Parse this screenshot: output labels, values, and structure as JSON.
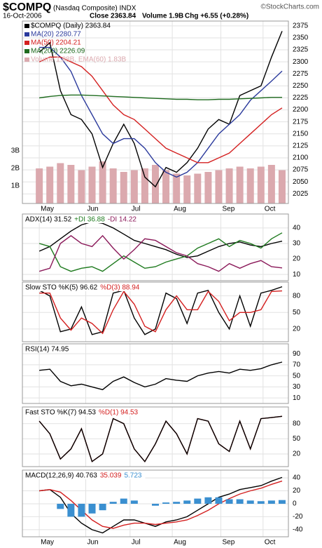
{
  "header": {
    "title": "$COMPQ",
    "subtitle": "(Nasdaq Composite) INDX",
    "credit": "©StockCharts.com",
    "date": "16-Oct-2006",
    "close": "Close 2363.84",
    "volume": "Volume 1.9B",
    "change": "Chg +6.55 (+0.28%)"
  },
  "chart_data": {
    "type": "stock-panels",
    "x": [
      0,
      5,
      10,
      15,
      20,
      25,
      30,
      35,
      40,
      45,
      50,
      55,
      60,
      65,
      70,
      75,
      80,
      85,
      90,
      95,
      100,
      105,
      110,
      115
    ],
    "xlim": [
      -8,
      118
    ],
    "xticks": [
      {
        "value": 0,
        "label": "May"
      },
      {
        "value": 22,
        "label": "Jun"
      },
      {
        "value": 43,
        "label": "Jul"
      },
      {
        "value": 63,
        "label": "Aug"
      },
      {
        "value": 86,
        "label": "Sep"
      },
      {
        "value": 106,
        "label": "Oct"
      }
    ],
    "panels": [
      {
        "type": "line",
        "ylim": [
          2005,
          2385
        ],
        "yticks": [
          2025,
          2050,
          2075,
          2100,
          2125,
          2150,
          2175,
          2200,
          2225,
          2250,
          2275,
          2300,
          2325,
          2350,
          2375
        ],
        "y2lim": [
          0,
          10.4
        ],
        "y2ticks": [
          {
            "value": 1,
            "label": "1B"
          },
          {
            "value": 2,
            "label": "2B"
          },
          {
            "value": 3,
            "label": "3B"
          }
        ],
        "series": [
          {
            "name": "Volume 1.88B, EMA(60) 1.83B",
            "type": "bar",
            "axis": "y2",
            "color": "#dba9ae",
            "values": [
              2.0,
              2.1,
              2.3,
              2.2,
              1.9,
              2.1,
              2.4,
              2.0,
              1.8,
              1.9,
              2.0,
              2.2,
              1.9,
              1.7,
              1.6,
              1.7,
              1.8,
              1.9,
              2.0,
              2.1,
              2.0,
              2.1,
              2.2,
              1.9
            ]
          },
          {
            "name": "$COMPQ (Daily) 2363.84",
            "color": "#000000",
            "values": [
              2320,
              2340,
              2240,
              2190,
              2180,
              2150,
              2080,
              2130,
              2170,
              2130,
              2060,
              2040,
              2080,
              2070,
              2090,
              2120,
              2160,
              2180,
              2170,
              2230,
              2240,
              2250,
              2310,
              2364
            ]
          },
          {
            "name": "MA(20) 2280.77",
            "color": "#2b3a9c",
            "values": [
              2330,
              2330,
              2310,
              2280,
              2230,
              2190,
              2150,
              2130,
              2140,
              2140,
              2120,
              2090,
              2070,
              2060,
              2070,
              2090,
              2120,
              2150,
              2170,
              2190,
              2220,
              2240,
              2260,
              2281
            ]
          },
          {
            "name": "MA(50) 2204.21",
            "color": "#d42020",
            "values": [
              2300,
              2310,
              2310,
              2300,
              2290,
              2270,
              2240,
              2210,
              2190,
              2180,
              2160,
              2140,
              2120,
              2110,
              2100,
              2090,
              2090,
              2100,
              2110,
              2130,
              2150,
              2170,
              2190,
              2204
            ]
          },
          {
            "name": "MA(200) 2226.09",
            "color": "#1e6b1e",
            "values": [
              2225,
              2228,
              2230,
              2231,
              2231,
              2230,
              2229,
              2228,
              2227,
              2226,
              2225,
              2224,
              2223,
              2222,
              2222,
              2221,
              2221,
              2222,
              2222,
              2223,
              2224,
              2225,
              2226,
              2226
            ]
          }
        ]
      },
      {
        "type": "line",
        "ylim": [
          6,
          49
        ],
        "yticks": [
          10,
          20,
          30,
          40
        ],
        "series": [
          {
            "name": "ADX(14) 31.52",
            "color": "#000000",
            "values": [
              25,
              28,
              33,
              38,
              42,
              44,
              43,
              40,
              36,
              32,
              30,
              28,
              26,
              23,
              21,
              22,
              25,
              28,
              30,
              31,
              29,
              28,
              30,
              31.5
            ]
          },
          {
            "name": "+DI 36.88",
            "color": "#1e7a1e",
            "values": [
              30,
              28,
              15,
              12,
              14,
              15,
              12,
              17,
              22,
              18,
              14,
              15,
              18,
              20,
              22,
              27,
              30,
              33,
              28,
              32,
              30,
              27,
              33,
              36.88
            ]
          },
          {
            "name": "-DI 14.22",
            "color": "#8b1a5a",
            "values": [
              12,
              14,
              30,
              35,
              30,
              28,
              35,
              27,
              20,
              26,
              33,
              32,
              28,
              24,
              22,
              17,
              15,
              12,
              17,
              14,
              17,
              19,
              15,
              14.22
            ]
          }
        ]
      },
      {
        "type": "line",
        "ylim": [
          -3,
          105
        ],
        "yticks": [
          20,
          50,
          80
        ],
        "series": [
          {
            "name": "Slow STO %K(5) 96.62",
            "color": "#000000",
            "values": [
              90,
              80,
              15,
              20,
              60,
              10,
              15,
              85,
              90,
              40,
              10,
              20,
              85,
              75,
              30,
              85,
              90,
              50,
              20,
              80,
              25,
              85,
              90,
              96.62
            ]
          },
          {
            "name": "%D(3) 88.94",
            "color": "#d42020",
            "values": [
              85,
              85,
              40,
              18,
              40,
              30,
              12,
              55,
              88,
              65,
              25,
              15,
              55,
              80,
              55,
              55,
              88,
              70,
              35,
              50,
              50,
              55,
              88,
              88.94
            ]
          }
        ]
      },
      {
        "type": "line",
        "ylim": [
          0,
          108
        ],
        "yticks": [
          10,
          30,
          50,
          70,
          90
        ],
        "series": [
          {
            "name": "RSI(14) 74.95",
            "color": "#000000",
            "values": [
              60,
              62,
              40,
              32,
              35,
              30,
              25,
              40,
              48,
              38,
              30,
              35,
              45,
              42,
              40,
              50,
              55,
              58,
              55,
              62,
              60,
              63,
              70,
              74.95
            ]
          }
        ]
      },
      {
        "type": "line",
        "ylim": [
          -5,
          113
        ],
        "yticks": [
          20,
          50,
          80
        ],
        "series": [
          {
            "name": "%D(1) 94.53",
            "color": "#d42020",
            "values": [
              85,
              60,
              10,
              30,
              70,
              5,
              20,
              90,
              80,
              30,
              5,
              40,
              85,
              60,
              20,
              90,
              85,
              40,
              25,
              85,
              30,
              90,
              92,
              94.53
            ]
          },
          {
            "name": "Fast STO %K(7) 94.53",
            "color": "#000000",
            "values": [
              85,
              60,
              10,
              30,
              70,
              5,
              20,
              90,
              80,
              30,
              5,
              40,
              85,
              60,
              20,
              90,
              85,
              40,
              25,
              85,
              30,
              90,
              92,
              94.53
            ]
          }
        ]
      },
      {
        "type": "line",
        "ylim": [
          -51,
          52
        ],
        "yticks": [
          -40,
          -20,
          0,
          20,
          40
        ],
        "series": [
          {
            "name": "MACD(12,26,9) 40.763",
            "color": "#000000",
            "values": [
              20,
              22,
              10,
              -15,
              -30,
              -40,
              -45,
              -35,
              -25,
              -25,
              -30,
              -35,
              -28,
              -25,
              -20,
              -10,
              0,
              10,
              15,
              22,
              25,
              28,
              35,
              40.763
            ]
          },
          {
            "name": "35.039",
            "color": "#d42020",
            "values": [
              20,
              22,
              18,
              5,
              -10,
              -25,
              -35,
              -38,
              -33,
              -30,
              -30,
              -32,
              -30,
              -28,
              -25,
              -18,
              -10,
              0,
              8,
              15,
              20,
              24,
              30,
              35.039
            ]
          },
          {
            "name": "5.723",
            "type": "bar",
            "color": "#3a8fd0",
            "values": [
              0,
              0,
              -8,
              -20,
              -20,
              -15,
              -10,
              3,
              8,
              5,
              0,
              -3,
              2,
              3,
              5,
              8,
              10,
              10,
              7,
              7,
              5,
              4,
              5,
              5.723
            ]
          }
        ]
      }
    ]
  }
}
